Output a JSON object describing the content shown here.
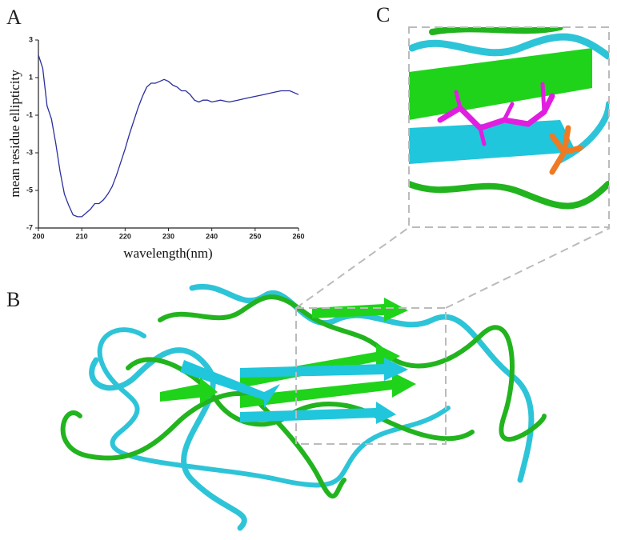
{
  "panel_labels": [
    "A",
    "B",
    "C"
  ],
  "chart_data": {
    "type": "line",
    "xlabel": "wavelength(nm)",
    "ylabel": "mean residue ellipticity",
    "x": [
      200,
      201,
      202,
      203,
      204,
      205,
      206,
      207,
      208,
      209,
      210,
      211,
      212,
      213,
      214,
      215,
      216,
      217,
      218,
      219,
      220,
      221,
      222,
      223,
      224,
      225,
      226,
      227,
      228,
      229,
      230,
      231,
      232,
      233,
      234,
      235,
      236,
      237,
      238,
      239,
      240,
      242,
      244,
      246,
      248,
      250,
      252,
      254,
      256,
      258,
      260
    ],
    "series": [
      {
        "color": "#2b2f9e",
        "values": [
          2.2,
          1.5,
          -0.5,
          -1.2,
          -2.5,
          -4,
          -5.2,
          -5.8,
          -6.3,
          -6.4,
          -6.4,
          -6.2,
          -6.0,
          -5.7,
          -5.7,
          -5.5,
          -5.2,
          -4.8,
          -4.2,
          -3.5,
          -2.8,
          -2.0,
          -1.3,
          -0.6,
          0,
          0.5,
          0.7,
          0.7,
          0.8,
          0.9,
          0.8,
          0.6,
          0.5,
          0.3,
          0.3,
          0.1,
          -0.2,
          -0.3,
          -0.2,
          -0.2,
          -0.3,
          -0.2,
          -0.3,
          -0.2,
          -0.1,
          0,
          0.1,
          0.2,
          0.3,
          0.3,
          0.1
        ]
      }
    ],
    "xlim": [
      200,
      260
    ],
    "xticks": [
      200,
      210,
      220,
      230,
      240,
      250,
      260
    ],
    "ylim": [
      -7,
      3
    ],
    "yticks": [
      -7,
      -5,
      -3,
      -1,
      1,
      3
    ]
  }
}
